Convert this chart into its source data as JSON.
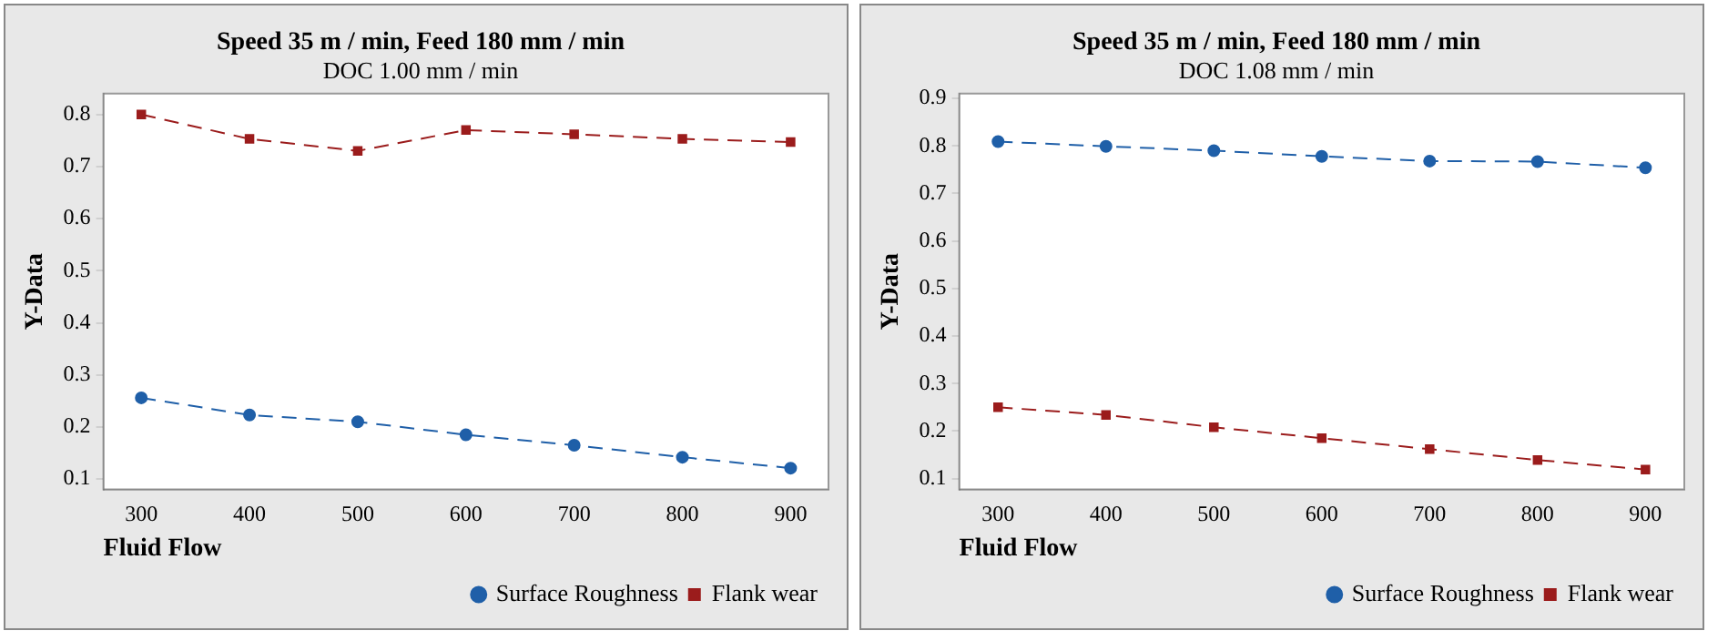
{
  "chart_data": [
    {
      "type": "line",
      "title": "Speed 35 m / min, Feed 180 mm / min",
      "subtitle": "DOC 1.00 mm / min",
      "xlabel": "Fluid Flow",
      "ylabel": "Y-Data",
      "x": [
        300,
        400,
        500,
        600,
        700,
        800,
        900
      ],
      "xlim": [
        265,
        935
      ],
      "xticks": [
        300,
        400,
        500,
        600,
        700,
        800,
        900
      ],
      "ylim": [
        0.08,
        0.84
      ],
      "yticks": [
        0.1,
        0.2,
        0.3,
        0.4,
        0.5,
        0.6,
        0.7,
        0.8
      ],
      "grid": false,
      "legend": "bottom right",
      "line_style": "dashed",
      "series": [
        {
          "name": "Surface Roughness",
          "color": "#1f5fa8",
          "marker": "circle",
          "values": [
            0.256,
            0.223,
            0.21,
            0.185,
            0.165,
            0.142,
            0.121
          ]
        },
        {
          "name": "Flank wear",
          "color": "#9b1c1c",
          "marker": "square",
          "values": [
            0.8,
            0.753,
            0.73,
            0.77,
            0.762,
            0.753,
            0.747
          ]
        }
      ]
    },
    {
      "type": "line",
      "title": "Speed 35 m / min, Feed 180 mm / min",
      "subtitle": "DOC 1.08 mm / min",
      "xlabel": "Fluid Flow",
      "ylabel": "Y-Data",
      "x": [
        300,
        400,
        500,
        600,
        700,
        800,
        900
      ],
      "xlim": [
        264,
        936
      ],
      "xticks": [
        300,
        400,
        500,
        600,
        700,
        800,
        900
      ],
      "ylim": [
        0.077,
        0.91
      ],
      "yticks": [
        0.1,
        0.2,
        0.3,
        0.4,
        0.5,
        0.6,
        0.7,
        0.8,
        0.9
      ],
      "grid": false,
      "legend": "bottom right",
      "line_style": "dashed",
      "series": [
        {
          "name": "Surface Roughness",
          "color": "#1f5fa8",
          "marker": "circle",
          "values": [
            0.809,
            0.799,
            0.79,
            0.778,
            0.768,
            0.767,
            0.754
          ]
        },
        {
          "name": "Flank wear",
          "color": "#9b1c1c",
          "marker": "square",
          "values": [
            0.25,
            0.234,
            0.208,
            0.185,
            0.162,
            0.139,
            0.119
          ]
        }
      ]
    }
  ]
}
